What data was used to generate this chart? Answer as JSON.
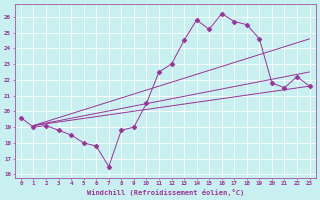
{
  "xlabel": "Windchill (Refroidissement éolien,°C)",
  "background_color": "#c8f0f0",
  "grid_color": "#ffffff",
  "line_color": "#993399",
  "xlim": [
    -0.5,
    23.5
  ],
  "ylim": [
    15.8,
    26.8
  ],
  "yticks": [
    16,
    17,
    18,
    19,
    20,
    21,
    22,
    23,
    24,
    25,
    26
  ],
  "xticks": [
    0,
    1,
    2,
    3,
    4,
    5,
    6,
    7,
    8,
    9,
    10,
    11,
    12,
    13,
    14,
    15,
    16,
    17,
    18,
    19,
    20,
    21,
    22,
    23
  ],
  "zigzag_x": [
    0,
    1,
    2,
    3,
    4,
    5,
    6,
    7,
    8,
    9,
    10,
    11,
    12,
    13,
    14,
    15,
    16,
    17,
    18,
    19,
    20,
    21,
    22,
    23
  ],
  "zigzag_y": [
    19.6,
    19.0,
    19.1,
    18.8,
    18.5,
    18.0,
    17.8,
    16.5,
    18.8,
    19.0,
    20.5,
    22.5,
    23.0,
    24.5,
    25.8,
    25.2,
    26.2,
    25.7,
    25.5,
    24.6,
    21.8,
    21.5,
    22.2,
    21.6
  ],
  "straight_lines": [
    {
      "x": [
        1,
        23
      ],
      "y": [
        19.1,
        21.6
      ]
    },
    {
      "x": [
        1,
        23
      ],
      "y": [
        19.1,
        22.5
      ]
    },
    {
      "x": [
        1,
        23
      ],
      "y": [
        19.1,
        24.6
      ]
    }
  ]
}
